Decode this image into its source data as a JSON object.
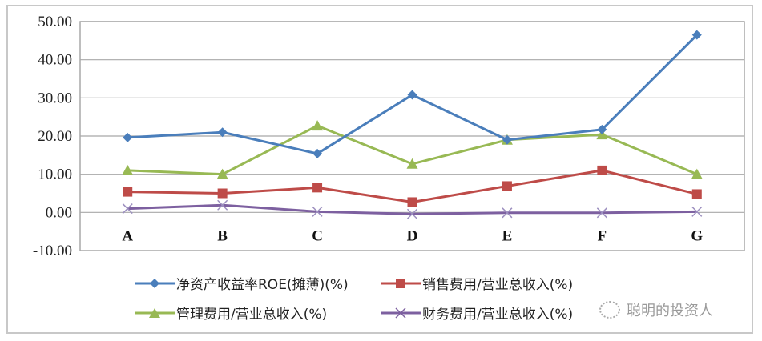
{
  "chart_data": {
    "type": "line",
    "title": "",
    "xlabel": "",
    "ylabel": "",
    "categories": [
      "A",
      "B",
      "C",
      "D",
      "E",
      "F",
      "G"
    ],
    "ylim": [
      -10,
      50
    ],
    "yticks": [
      "50.00",
      "40.00",
      "30.00",
      "20.00",
      "10.00",
      "0.00",
      "-10.00"
    ],
    "grid": true,
    "legend_position": "bottom",
    "series": [
      {
        "name": "净资产收益率ROE(摊薄)(%)",
        "color": "#4a7ebb",
        "marker": "diamond",
        "values": [
          19.6,
          21.0,
          15.4,
          30.8,
          19.0,
          21.7,
          46.5
        ]
      },
      {
        "name": "销售费用/营业总收入(%)",
        "color": "#be4b48",
        "marker": "square",
        "values": [
          5.4,
          5.0,
          6.5,
          2.7,
          6.9,
          11.0,
          4.8
        ]
      },
      {
        "name": "管理费用/营业总收入(%)",
        "color": "#98b954",
        "marker": "triangle",
        "values": [
          11.0,
          10.0,
          22.7,
          12.7,
          19.0,
          20.4,
          10.0
        ]
      },
      {
        "name": "财务费用/营业总收入(%)",
        "color": "#7d60a0",
        "marker": "x",
        "values": [
          1.0,
          1.9,
          0.2,
          -0.4,
          -0.1,
          -0.1,
          0.2
        ]
      }
    ]
  },
  "watermark": {
    "text": "聪明的投资人",
    "icon": "wechat-icon"
  }
}
